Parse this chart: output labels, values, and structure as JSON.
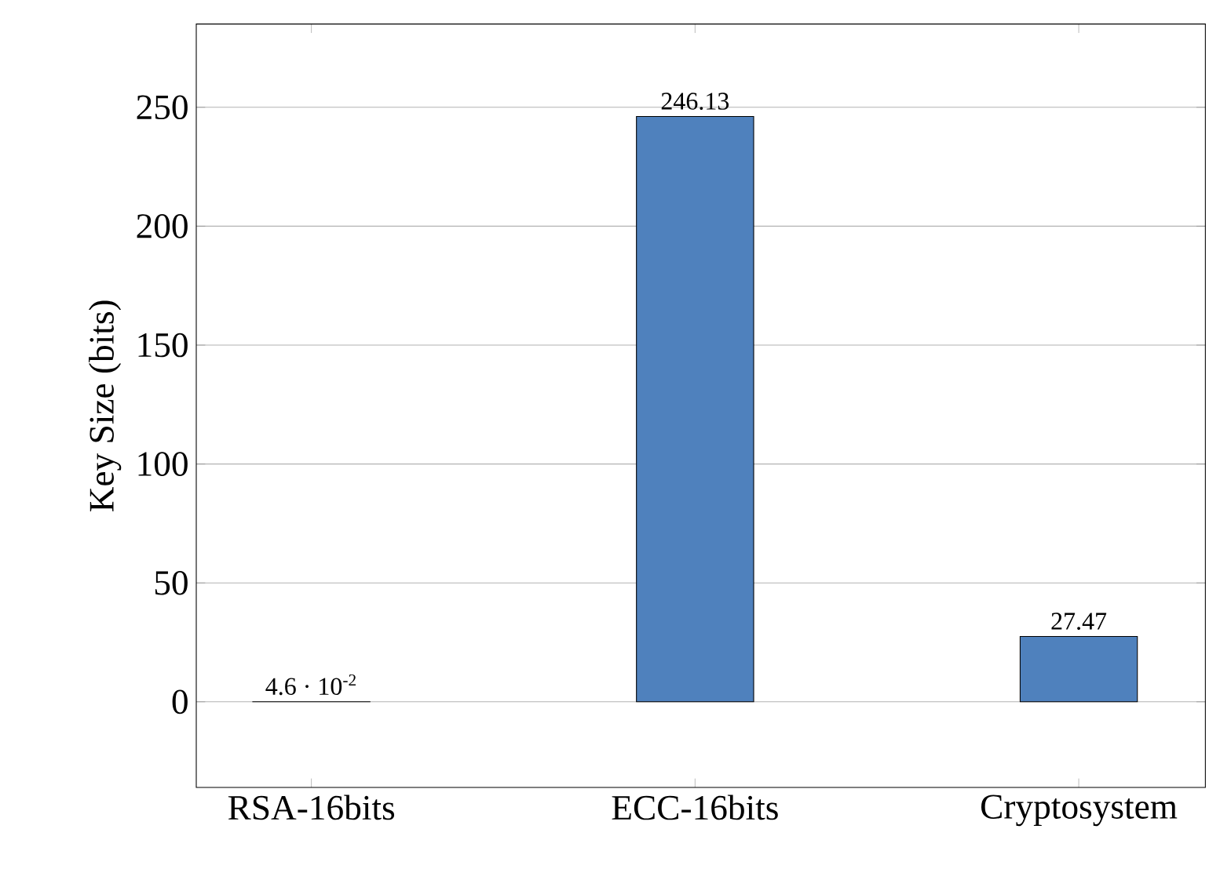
{
  "chart_data": {
    "type": "bar",
    "ylabel": "Key Size (bits)",
    "categories": [
      "RSA-16bits",
      "ECC-16bits",
      "Cryptosystem"
    ],
    "values": [
      0.046,
      246.13,
      27.47
    ],
    "value_labels": [
      "4.6 · 10$^{-2}$",
      "246.13",
      "27.47"
    ],
    "color": "#4f81bd",
    "ylim": [
      -36,
      285
    ],
    "yticks": [
      0,
      50,
      100,
      150,
      200,
      250
    ],
    "grid": "y"
  }
}
